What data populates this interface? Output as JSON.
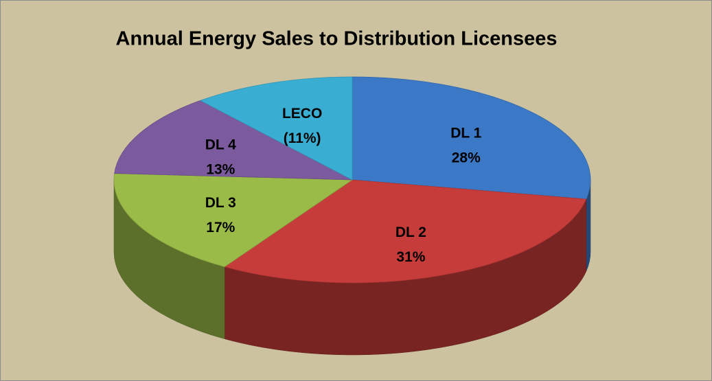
{
  "chart_data": {
    "type": "pie",
    "title": "Annual Energy Sales to Distribution Licensees",
    "categories": [
      "DL 1",
      "DL 2",
      "DL 3",
      "DL 4",
      "LECO"
    ],
    "values": [
      28,
      31,
      17,
      13,
      11
    ],
    "value_labels": [
      "28%",
      "31%",
      "17%",
      "13%",
      "(11%)"
    ],
    "colors": [
      "#3b78c6",
      "#c63c3a",
      "#9abb48",
      "#7b5a9e",
      "#3aadd2"
    ]
  }
}
